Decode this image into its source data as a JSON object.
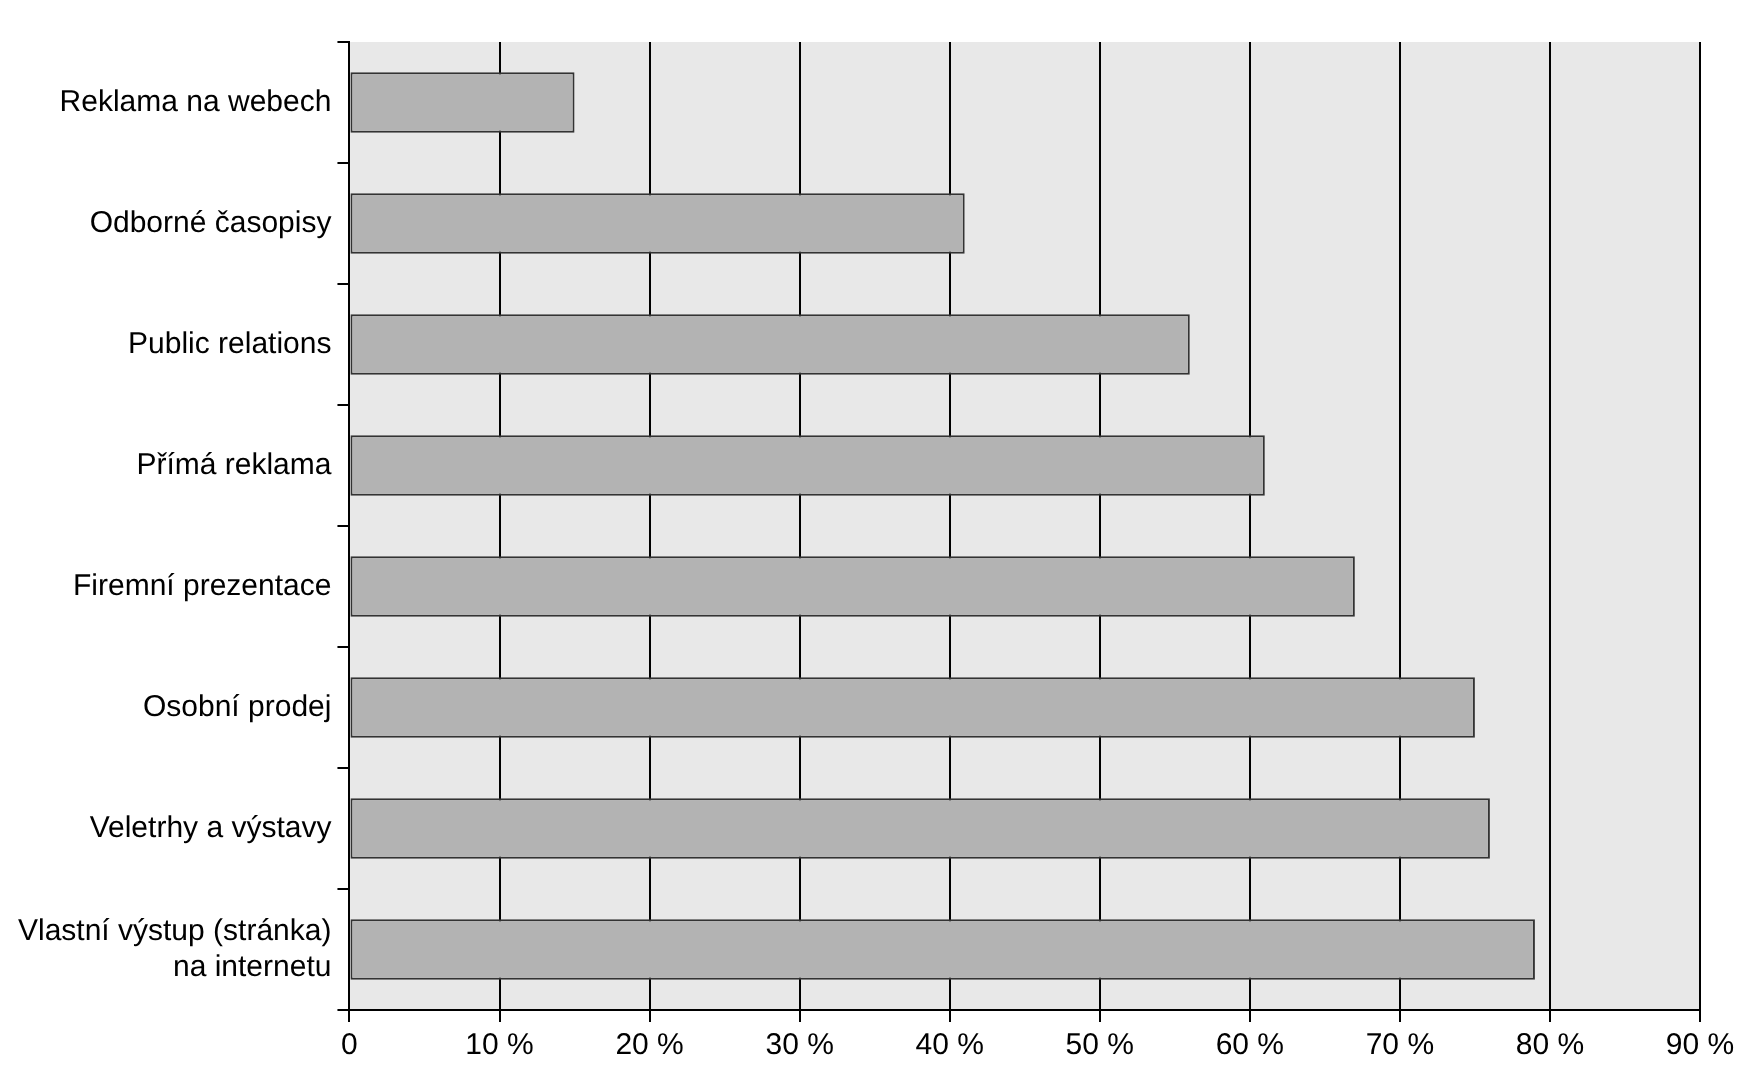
{
  "chart_data": {
    "type": "bar",
    "orientation": "horizontal",
    "categories": [
      "Reklama na webech",
      "Odborné časopisy",
      "Public relations",
      "Přímá reklama",
      "Firemní prezentace",
      "Osobní prodej",
      "Veletrhy a výstavy",
      "Vlastní výstup (stránka)\nna internetu"
    ],
    "values": [
      15,
      41,
      56,
      61,
      67,
      75,
      76,
      79
    ],
    "color": "#b3b3b3",
    "xlim": [
      0,
      90
    ],
    "xticks": [
      {
        "value": 0,
        "label": "0"
      },
      {
        "value": 10,
        "label": "10 %"
      },
      {
        "value": 20,
        "label": "20 %"
      },
      {
        "value": 30,
        "label": "30 %"
      },
      {
        "value": 40,
        "label": "40 %"
      },
      {
        "value": 50,
        "label": "50 %"
      },
      {
        "value": 60,
        "label": "60 %"
      },
      {
        "value": 70,
        "label": "70 %"
      },
      {
        "value": 80,
        "label": "80 %"
      },
      {
        "value": 90,
        "label": "90 %"
      }
    ],
    "grid": "x",
    "legend": false
  }
}
